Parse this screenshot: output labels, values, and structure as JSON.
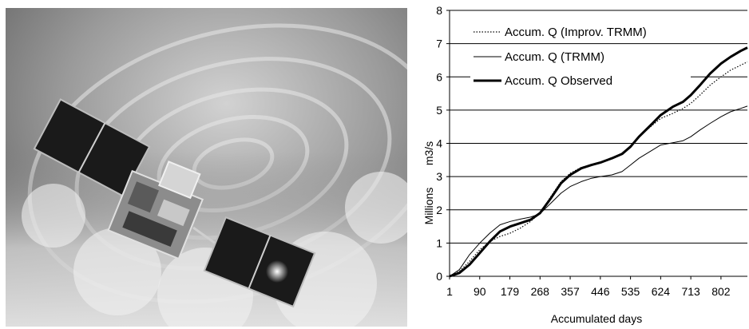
{
  "chart_data": {
    "type": "line",
    "title": "",
    "xlabel": "Accumulated days",
    "ylabel": "m3/s",
    "ylabel_multiplier": "Millions",
    "xlim": [
      1,
      880
    ],
    "ylim": [
      0,
      8
    ],
    "x_ticks": [
      1,
      90,
      179,
      268,
      357,
      446,
      535,
      624,
      713,
      802
    ],
    "y_ticks": [
      0,
      1,
      2,
      3,
      4,
      5,
      6,
      7,
      8
    ],
    "grid": "horizontal",
    "legend_position": "top-left",
    "series": [
      {
        "name": "Accum. Q (Improv. TRMM)",
        "style": "dotted",
        "color": "#000000",
        "x": [
          1,
          30,
          60,
          90,
          120,
          150,
          180,
          210,
          240,
          268,
          300,
          330,
          357,
          390,
          420,
          446,
          480,
          510,
          535,
          560,
          600,
          624,
          660,
          690,
          713,
          740,
          770,
          802,
          830,
          860,
          880
        ],
        "y": [
          0,
          0.15,
          0.45,
          0.8,
          1.05,
          1.2,
          1.3,
          1.45,
          1.65,
          1.9,
          2.4,
          2.85,
          3.1,
          3.28,
          3.35,
          3.42,
          3.55,
          3.7,
          3.9,
          4.2,
          4.55,
          4.75,
          4.9,
          5.05,
          5.2,
          5.45,
          5.75,
          6.0,
          6.2,
          6.35,
          6.45
        ]
      },
      {
        "name": "Accum. Q (TRMM)",
        "style": "thin",
        "color": "#000000",
        "x": [
          1,
          30,
          60,
          90,
          120,
          150,
          180,
          210,
          240,
          268,
          300,
          330,
          357,
          390,
          420,
          446,
          480,
          510,
          535,
          560,
          600,
          624,
          660,
          690,
          713,
          740,
          770,
          802,
          830,
          860,
          880
        ],
        "y": [
          0,
          0.2,
          0.65,
          1.0,
          1.3,
          1.55,
          1.65,
          1.72,
          1.78,
          1.88,
          2.2,
          2.5,
          2.7,
          2.85,
          2.95,
          3.0,
          3.05,
          3.15,
          3.35,
          3.55,
          3.8,
          3.95,
          4.02,
          4.08,
          4.2,
          4.4,
          4.6,
          4.8,
          4.95,
          5.05,
          5.12
        ]
      },
      {
        "name": "Accum. Q Observed",
        "style": "thick",
        "color": "#000000",
        "x": [
          1,
          30,
          60,
          90,
          120,
          150,
          180,
          210,
          240,
          268,
          300,
          330,
          357,
          390,
          420,
          446,
          480,
          510,
          535,
          560,
          600,
          624,
          660,
          690,
          713,
          740,
          770,
          802,
          830,
          860,
          880
        ],
        "y": [
          0,
          0.1,
          0.35,
          0.7,
          1.05,
          1.35,
          1.5,
          1.6,
          1.7,
          1.9,
          2.35,
          2.8,
          3.05,
          3.25,
          3.35,
          3.42,
          3.55,
          3.68,
          3.9,
          4.2,
          4.6,
          4.85,
          5.1,
          5.25,
          5.45,
          5.75,
          6.1,
          6.4,
          6.6,
          6.78,
          6.88
        ]
      }
    ]
  },
  "photo": {
    "subject": "satellite-over-storm",
    "bg_dark": "#3c3c3c",
    "bg_light": "#d8d8d8",
    "panel_color": "#1a1a1a"
  }
}
